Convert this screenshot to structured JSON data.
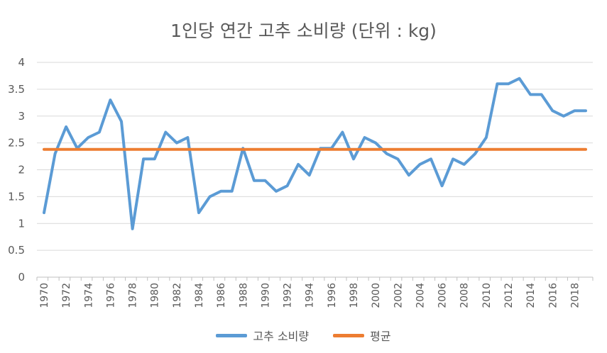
{
  "chart_data": {
    "type": "line",
    "title": "1인당 연간 고추 소비량 (단위 : kg)",
    "xlabel": "",
    "ylabel": "",
    "ylim": [
      0,
      4
    ],
    "yticks": [
      "0",
      "0.5",
      "1",
      "1.5",
      "2",
      "2.5",
      "3",
      "3.5",
      "4"
    ],
    "x": [
      1970,
      1971,
      1972,
      1973,
      1974,
      1975,
      1976,
      1977,
      1978,
      1979,
      1980,
      1981,
      1982,
      1983,
      1984,
      1985,
      1986,
      1987,
      1988,
      1989,
      1990,
      1991,
      1992,
      1993,
      1994,
      1995,
      1996,
      1997,
      1998,
      1999,
      2000,
      2001,
      2002,
      2003,
      2004,
      2005,
      2006,
      2007,
      2008,
      2009,
      2010,
      2011,
      2012,
      2013,
      2014,
      2015,
      2016,
      2017,
      2018,
      2019
    ],
    "xtick_labels": [
      "1970",
      "1972",
      "1974",
      "1976",
      "1978",
      "1980",
      "1982",
      "1984",
      "1986",
      "1988",
      "1990",
      "1992",
      "1994",
      "1996",
      "1998",
      "2000",
      "2002",
      "2004",
      "2006",
      "2008",
      "2010",
      "2012",
      "2014",
      "2016",
      "2018"
    ],
    "grid": true,
    "legend_position": "bottom",
    "series": [
      {
        "name": "고추 소비량",
        "color": "#5B9BD5",
        "values": [
          1.2,
          2.3,
          2.8,
          2.4,
          2.6,
          2.7,
          3.3,
          2.9,
          0.9,
          2.2,
          2.2,
          2.7,
          2.5,
          2.6,
          1.2,
          1.5,
          1.6,
          1.6,
          2.4,
          1.8,
          1.8,
          1.6,
          1.7,
          2.1,
          1.9,
          2.4,
          2.4,
          2.7,
          2.2,
          2.6,
          2.5,
          2.3,
          2.2,
          1.9,
          2.1,
          2.2,
          1.7,
          2.2,
          2.1,
          2.3,
          2.6,
          3.6,
          3.6,
          3.7,
          3.4,
          3.4,
          3.1,
          3.0,
          3.1,
          3.1
        ]
      },
      {
        "name": "평균",
        "color": "#ED7D31",
        "values": [
          2.38,
          2.38,
          2.38,
          2.38,
          2.38,
          2.38,
          2.38,
          2.38,
          2.38,
          2.38,
          2.38,
          2.38,
          2.38,
          2.38,
          2.38,
          2.38,
          2.38,
          2.38,
          2.38,
          2.38,
          2.38,
          2.38,
          2.38,
          2.38,
          2.38,
          2.38,
          2.38,
          2.38,
          2.38,
          2.38,
          2.38,
          2.38,
          2.38,
          2.38,
          2.38,
          2.38,
          2.38,
          2.38,
          2.38,
          2.38,
          2.38,
          2.38,
          2.38,
          2.38,
          2.38,
          2.38,
          2.38,
          2.38,
          2.38,
          2.38
        ]
      }
    ]
  }
}
